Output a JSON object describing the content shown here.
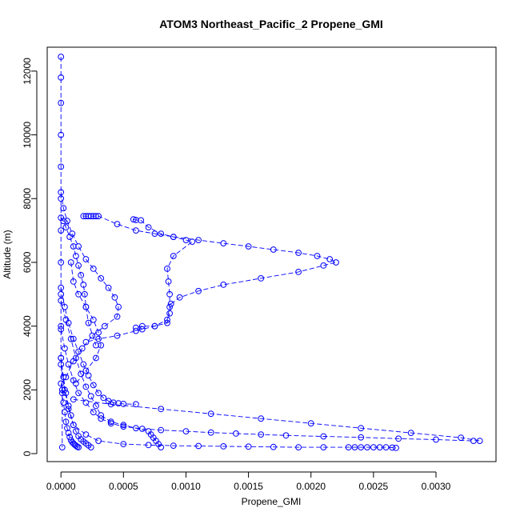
{
  "chart_data": {
    "type": "scatter",
    "title": "ATOM3 Northeast_Pacific_2 Propene_GMI",
    "xlabel": "Propene_GMI",
    "ylabel": "Altitude (m)",
    "xlim": [
      -0.00011,
      0.00348
    ],
    "ylim": [
      -250,
      12750
    ],
    "x_ticks": [
      0,
      0.0005,
      0.001,
      0.0015,
      0.002,
      0.0025,
      0.003
    ],
    "x_tick_labels": [
      "0.0000",
      "0.0005",
      "0.0010",
      "0.0015",
      "0.0020",
      "0.0025",
      "0.0030"
    ],
    "y_ticks": [
      0,
      2000,
      4000,
      6000,
      8000,
      10000,
      12000
    ],
    "y_tick_labels": [
      "0",
      "2000",
      "4000",
      "6000",
      "8000",
      "10000",
      "12000"
    ],
    "grid": false,
    "marker": "open-circle",
    "color": "#0000ff",
    "series": [
      {
        "x": [
          0.0,
          0.0,
          0.0,
          0.0,
          0.0,
          0.0,
          0.0,
          0.0,
          0.0,
          0.0,
          0.0,
          1e-05,
          1e-05
        ],
        "y": [
          12450,
          11800,
          11000,
          10000,
          9000,
          8000,
          7000,
          6000,
          5000,
          4000,
          3000,
          2000,
          200
        ]
      },
      {
        "x": [
          0.0,
          2e-05,
          4e-05,
          7e-05,
          0.0001,
          0.00012,
          0.00014,
          0.00016,
          0.00018,
          0.00019,
          0.0002,
          0.00022,
          0.00028
        ],
        "y": [
          7400,
          7300,
          7100,
          6800,
          6500,
          6200,
          5900,
          5600,
          5300,
          5000,
          4600,
          4100,
          3400
        ]
      },
      {
        "x": [
          0.0,
          2e-05,
          5e-05,
          9e-05,
          0.00014,
          0.0002,
          0.00026,
          0.00032,
          0.00038,
          0.00043,
          0.00046,
          0.00045,
          0.00035,
          0.00025,
          0.00017,
          0.0001,
          4e-05
        ],
        "y": [
          8200,
          7700,
          7300,
          6900,
          6500,
          6100,
          5800,
          5500,
          5200,
          4900,
          4600,
          4300,
          4000,
          3700,
          3300,
          2900,
          2400
        ]
      },
      {
        "x": [
          0.00018,
          0.0002,
          0.00022,
          0.00024,
          0.00026,
          0.00028,
          0.0003,
          0.00045,
          0.0006,
          0.00075,
          0.0009,
          0.0011,
          0.0013,
          0.0015,
          0.0017,
          0.0019,
          0.00205,
          0.00215,
          0.0022,
          0.0021,
          0.0019,
          0.0016,
          0.0013,
          0.0011,
          0.00095,
          0.00088,
          0.00087,
          0.00085,
          0.00075,
          0.00065,
          0.0006,
          0.00045,
          0.0003,
          0.0002
        ],
        "y": [
          7450,
          7450,
          7450,
          7450,
          7450,
          7450,
          7450,
          7200,
          7000,
          6900,
          6800,
          6700,
          6600,
          6500,
          6400,
          6300,
          6200,
          6100,
          6000,
          5900,
          5700,
          5500,
          5300,
          5100,
          4900,
          4700,
          4400,
          4100,
          4000,
          3900,
          3850,
          3700,
          3600,
          3500
        ]
      },
      {
        "x": [
          0.00058,
          0.0006,
          0.00064,
          0.0007,
          0.0008,
          0.0009,
          0.001,
          0.00105,
          0.0009,
          0.00085,
          0.00086,
          0.00087,
          0.00087,
          0.00085,
          0.00075,
          0.00065,
          0.0006
        ],
        "y": [
          7350,
          7330,
          7320,
          7100,
          6900,
          6800,
          6700,
          6650,
          6200,
          5800,
          5400,
          5000,
          4600,
          4200,
          4000,
          4000,
          3950
        ]
      },
      {
        "x": [
          8e-05,
          0.0001,
          0.00014,
          0.0002,
          0.00026,
          0.0003,
          0.00032,
          0.00028,
          0.0002,
          0.00012
        ],
        "y": [
          6000,
          5400,
          5000,
          4600,
          4200,
          3800,
          3400,
          3000,
          2600,
          2200
        ]
      },
      {
        "x": [
          0.0,
          3e-05,
          6e-05,
          0.0001,
          0.00014,
          0.00018,
          0.00022,
          0.00026,
          0.0003,
          0.00034,
          0.00038,
          0.00042,
          0.00046,
          0.0005,
          0.0006
        ],
        "y": [
          5200,
          4600,
          4100,
          3600,
          3200,
          2800,
          2450,
          2150,
          1900,
          1750,
          1650,
          1600,
          1580,
          1560,
          1550
        ]
      },
      {
        "x": [
          0.0,
          4e-05,
          8e-05,
          0.00012,
          0.00016,
          0.0002,
          0.00024,
          0.00028,
          0.00032,
          0.0004,
          0.0005,
          0.0006,
          0.0007,
          0.00072,
          0.00074,
          0.00076,
          0.00078,
          0.0008
        ],
        "y": [
          4800,
          4200,
          3600,
          3000,
          2500,
          2100,
          1800,
          1500,
          1200,
          1000,
          900,
          800,
          700,
          600,
          500,
          400,
          300,
          200
        ]
      },
      {
        "x": [
          0.0,
          3e-05,
          6e-05,
          0.0001,
          0.00014,
          0.0002,
          0.00026,
          0.00032,
          0.0004,
          0.0005,
          0.00065,
          0.0008,
          0.001,
          0.0012,
          0.0014,
          0.0016,
          0.0018,
          0.0021,
          0.0024,
          0.0027,
          0.003,
          0.0033
        ],
        "y": [
          3900,
          3300,
          2800,
          2300,
          1900,
          1600,
          1300,
          1100,
          950,
          850,
          780,
          740,
          700,
          660,
          630,
          600,
          570,
          540,
          510,
          470,
          440,
          400
        ]
      },
      {
        "x": [
          0.0001,
          0.0004,
          0.0008,
          0.0012,
          0.0016,
          0.002,
          0.0024,
          0.0028,
          0.0032,
          0.00335
        ],
        "y": [
          1700,
          1550,
          1400,
          1250,
          1100,
          950,
          800,
          650,
          500,
          400
        ]
      },
      {
        "x": [
          0.0,
          3e-05,
          6e-05,
          0.0001,
          0.0002,
          0.0003,
          0.0005,
          0.0007,
          0.0009,
          0.0011,
          0.0013,
          0.0015,
          0.0017,
          0.0019,
          0.0021,
          0.0023,
          0.00235,
          0.0024,
          0.00245,
          0.0025,
          0.00255,
          0.0026,
          0.00265,
          0.00268
        ],
        "y": [
          2800,
          2000,
          1400,
          900,
          600,
          400,
          300,
          270,
          250,
          240,
          230,
          220,
          210,
          200,
          200,
          200,
          200,
          200,
          200,
          200,
          200,
          200,
          190,
          180
        ]
      },
      {
        "x": [
          0.0,
          2e-05,
          4e-05,
          6e-05,
          8e-05,
          0.0001,
          0.00012,
          0.00014,
          0.00016,
          0.00018,
          0.0002,
          0.00022,
          0.00024
        ],
        "y": [
          3000,
          2400,
          1900,
          1500,
          1200,
          900,
          700,
          550,
          450,
          380,
          320,
          260,
          200
        ]
      },
      {
        "x": [
          0.0,
          1e-05,
          2e-05,
          3e-05,
          4e-05,
          5e-05,
          6e-05,
          7e-05,
          8e-05,
          9e-05,
          0.0001,
          0.00011,
          0.00012,
          0.00013,
          0.00014
        ],
        "y": [
          2200,
          1900,
          1600,
          1300,
          1000,
          800,
          650,
          520,
          420,
          360,
          320,
          280,
          250,
          220,
          200
        ]
      }
    ]
  }
}
